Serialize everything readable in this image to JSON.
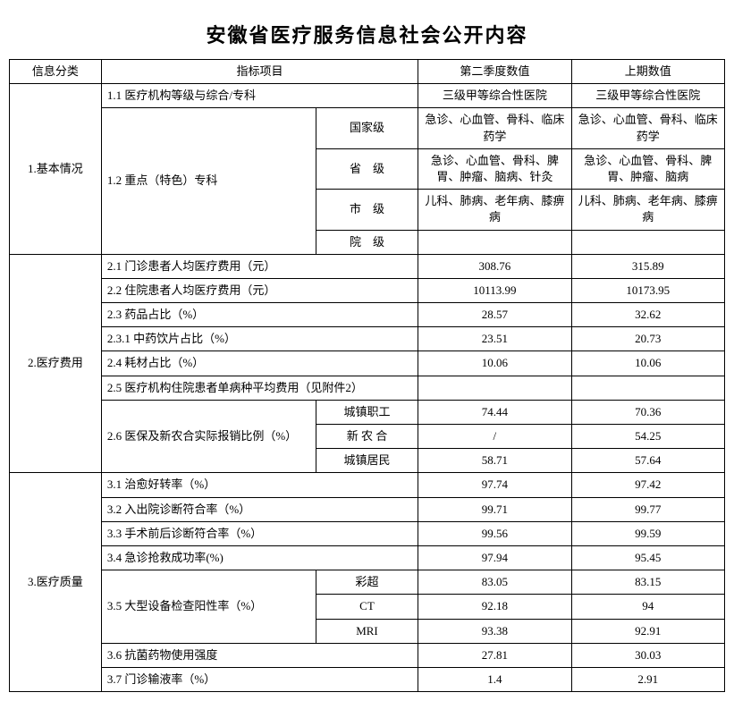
{
  "title": "安徽省医疗服务信息社会公开内容",
  "header": {
    "category": "信息分类",
    "indicator": "指标项目",
    "q2": "第二季度数值",
    "prev": "上期数值"
  },
  "s1": {
    "label": "1.基本情况",
    "r11": {
      "label": "1.1 医疗机构等级与综合/专科",
      "q2": "三级甲等综合性医院",
      "prev": "三级甲等综合性医院"
    },
    "r12": {
      "label": "1.2 重点（特色）专科",
      "lv_national": {
        "label": "国家级",
        "q2": "急诊、心血管、骨科、临床药学",
        "prev": "急诊、心血管、骨科、临床药学"
      },
      "lv_province": {
        "label": "省　级",
        "q2": "急诊、心血管、骨科、脾胃、肿瘤、脑病、针灸",
        "prev": "急诊、心血管、骨科、脾胃、肿瘤、脑病"
      },
      "lv_city": {
        "label": "市　级",
        "q2": "儿科、肺病、老年病、膝痹病",
        "prev": "儿科、肺病、老年病、膝痹病"
      },
      "lv_hospital": {
        "label": "院　级",
        "q2": "",
        "prev": ""
      }
    }
  },
  "s2": {
    "label": "2.医疗费用",
    "r21": {
      "label": "2.1 门诊患者人均医疗费用（元）",
      "q2": "308.76",
      "prev": "315.89"
    },
    "r22": {
      "label": "2.2 住院患者人均医疗费用（元）",
      "q2": "10113.99",
      "prev": "10173.95"
    },
    "r23": {
      "label": "2.3 药品占比（%）",
      "q2": "28.57",
      "prev": "32.62"
    },
    "r231": {
      "label": "2.3.1 中药饮片占比（%）",
      "q2": "23.51",
      "prev": "20.73"
    },
    "r24": {
      "label": "2.4 耗材占比（%）",
      "q2": "10.06",
      "prev": "10.06"
    },
    "r25": {
      "label": "2.5 医疗机构住院患者单病种平均费用（见附件2）",
      "q2": "",
      "prev": ""
    },
    "r26": {
      "label": "2.6 医保及新农合实际报销比例（%）",
      "urban_emp": {
        "label": "城镇职工",
        "q2": "74.44",
        "prev": "70.36"
      },
      "nrc": {
        "label": "新 农 合",
        "q2": "/",
        "prev": "54.25"
      },
      "urban_res": {
        "label": "城镇居民",
        "q2": "58.71",
        "prev": "57.64"
      }
    }
  },
  "s3": {
    "label": "3.医疗质量",
    "r31": {
      "label": "3.1 治愈好转率（%）",
      "q2": "97.74",
      "prev": "97.42"
    },
    "r32": {
      "label": "3.2 入出院诊断符合率（%）",
      "q2": "99.71",
      "prev": "99.77"
    },
    "r33": {
      "label": "3.3 手术前后诊断符合率（%）",
      "q2": "99.56",
      "prev": "99.59"
    },
    "r34": {
      "label": "3.4 急诊抢救成功率(%)",
      "q2": "97.94",
      "prev": "95.45"
    },
    "r35": {
      "label": "3.5 大型设备检查阳性率（%）",
      "us": {
        "label": "彩超",
        "q2": "83.05",
        "prev": "83.15"
      },
      "ct": {
        "label": "CT",
        "q2": "92.18",
        "prev": "94"
      },
      "mri": {
        "label": "MRI",
        "q2": "93.38",
        "prev": "92.91"
      }
    },
    "r36": {
      "label": "3.6 抗菌药物使用强度",
      "q2": "27.81",
      "prev": "30.03"
    },
    "r37": {
      "label": "3.7 门诊输液率（%）",
      "q2": "1.4",
      "prev": "2.91"
    }
  },
  "colors": {
    "border": "#000000",
    "bg": "#ffffff",
    "text": "#000000"
  },
  "typography": {
    "fontFamily": "SimSun",
    "cellFontSize": 13,
    "titleFontSize": 22
  }
}
